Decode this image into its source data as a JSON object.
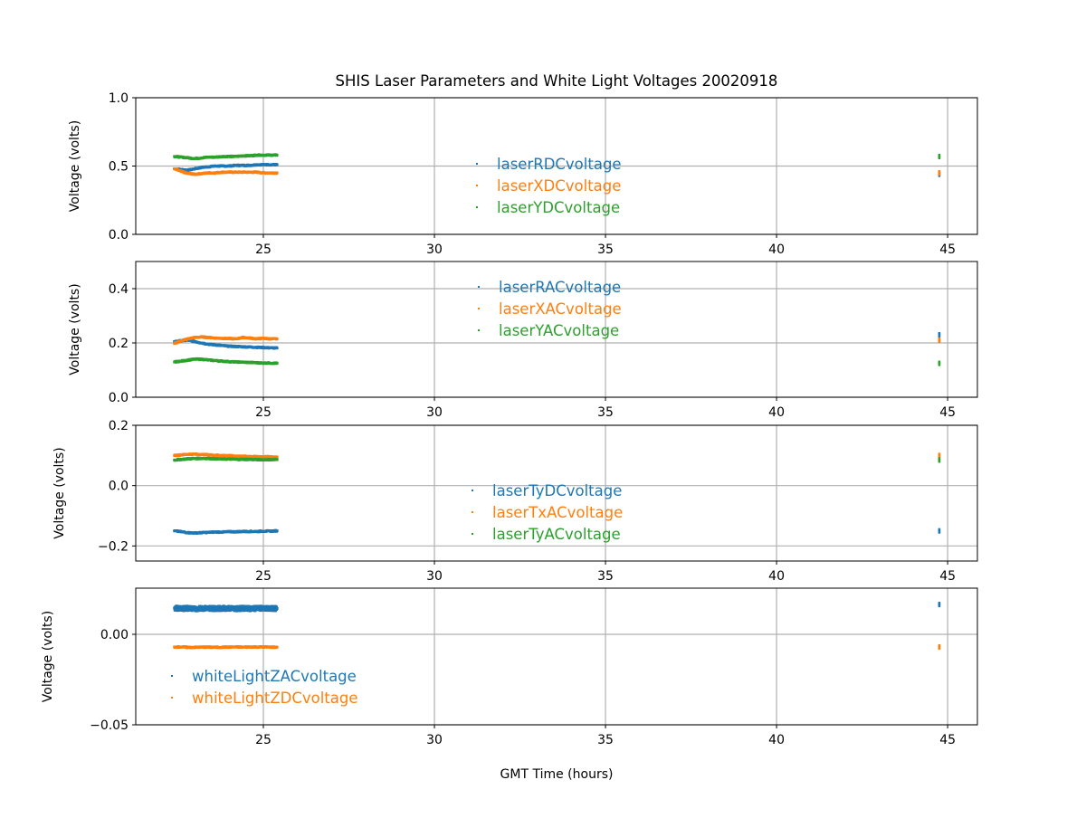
{
  "chart_data": {
    "type": "scatter",
    "title": "SHIS Laser Parameters and White Light Voltages 20020918",
    "xlabel": "GMT Time (hours)",
    "xlim": [
      21.27,
      45.87
    ],
    "xticks": [
      25,
      30,
      35,
      40,
      45
    ],
    "grid": true,
    "x": [
      22.4,
      22.6,
      22.8,
      23.0,
      23.2,
      23.4,
      23.6,
      23.8,
      24.0,
      24.2,
      24.4,
      24.6,
      24.8,
      25.0,
      25.2,
      25.4
    ],
    "x_late": 44.75,
    "panels": [
      {
        "ylabel": "Voltage (volts)",
        "ylim": [
          0,
          1
        ],
        "yticks": [
          0.0,
          0.5,
          1.0
        ],
        "ytick_labels": [
          "0.0",
          "0.5",
          "1.0"
        ],
        "legend_placement": "center",
        "series": [
          {
            "name": "laserRDCvoltage",
            "color": "#1f77b4",
            "values": [
              0.48,
              0.475,
              0.47,
              0.48,
              0.49,
              0.495,
              0.5,
              0.5,
              0.5,
              0.505,
              0.505,
              0.505,
              0.51,
              0.51,
              0.51,
              0.51
            ],
            "late": 0.44
          },
          {
            "name": "laserXDCvoltage",
            "color": "#ff7f0e",
            "values": [
              0.48,
              0.46,
              0.445,
              0.44,
              0.445,
              0.45,
              0.45,
              0.455,
              0.455,
              0.455,
              0.455,
              0.455,
              0.455,
              0.45,
              0.45,
              0.45
            ],
            "late": 0.45
          },
          {
            "name": "laserYDCvoltage",
            "color": "#2ca02c",
            "values": [
              0.57,
              0.565,
              0.56,
              0.555,
              0.56,
              0.565,
              0.565,
              0.57,
              0.57,
              0.57,
              0.575,
              0.575,
              0.58,
              0.58,
              0.58,
              0.58
            ],
            "late": 0.57
          }
        ]
      },
      {
        "ylabel": "Voltage (volts)",
        "ylim": [
          0,
          0.5
        ],
        "yticks": [
          0.0,
          0.2,
          0.4
        ],
        "ytick_labels": [
          "0.0",
          "0.2",
          "0.4"
        ],
        "legend_placement": "upper center",
        "series": [
          {
            "name": "laserRACvoltage",
            "color": "#1f77b4",
            "values": [
              0.205,
              0.208,
              0.21,
              0.205,
              0.2,
              0.195,
              0.193,
              0.19,
              0.188,
              0.187,
              0.186,
              0.185,
              0.184,
              0.183,
              0.182,
              0.181
            ],
            "late": 0.23
          },
          {
            "name": "laserXACvoltage",
            "color": "#ff7f0e",
            "values": [
              0.198,
              0.208,
              0.215,
              0.22,
              0.222,
              0.22,
              0.218,
              0.217,
              0.216,
              0.215,
              0.22,
              0.218,
              0.215,
              0.217,
              0.215,
              0.215
            ],
            "late": 0.21
          },
          {
            "name": "laserYACvoltage",
            "color": "#2ca02c",
            "values": [
              0.13,
              0.133,
              0.137,
              0.14,
              0.14,
              0.137,
              0.135,
              0.133,
              0.131,
              0.13,
              0.129,
              0.128,
              0.127,
              0.126,
              0.126,
              0.125
            ],
            "late": 0.125
          }
        ]
      },
      {
        "ylabel": "Voltage (volts)",
        "ylim": [
          -0.25,
          0.2
        ],
        "yticks": [
          -0.2,
          0.0,
          0.2
        ],
        "ytick_labels": [
          "−0.2",
          "0.0",
          "0.2"
        ],
        "legend_placement": "center",
        "series": [
          {
            "name": "laserTyDCvoltage",
            "color": "#1f77b4",
            "values": [
              -0.15,
              -0.153,
              -0.156,
              -0.157,
              -0.156,
              -0.155,
              -0.154,
              -0.154,
              -0.153,
              -0.153,
              -0.152,
              -0.152,
              -0.152,
              -0.151,
              -0.151,
              -0.15
            ],
            "late": -0.15
          },
          {
            "name": "laserTxACvoltage",
            "color": "#ff7f0e",
            "values": [
              0.1,
              0.102,
              0.104,
              0.104,
              0.103,
              0.102,
              0.101,
              0.1,
              0.099,
              0.098,
              0.097,
              0.097,
              0.096,
              0.096,
              0.095,
              0.095
            ],
            "late": 0.1
          },
          {
            "name": "laserTyACvoltage",
            "color": "#2ca02c",
            "values": [
              0.085,
              0.087,
              0.089,
              0.09,
              0.09,
              0.09,
              0.089,
              0.088,
              0.088,
              0.087,
              0.087,
              0.087,
              0.086,
              0.086,
              0.086,
              0.086
            ],
            "late": 0.085
          }
        ]
      },
      {
        "ylabel": "Voltage (volts)",
        "ylim": [
          -0.05,
          0.0255
        ],
        "yticks": [
          -0.05,
          0.0
        ],
        "ytick_labels": [
          "−0.05",
          "0.00"
        ],
        "legend_placement": "lower left",
        "series": [
          {
            "name": "whiteLightZACvoltage",
            "color": "#1f77b4",
            "values": [
              0.0145,
              0.0142,
              0.0144,
              0.0141,
              0.0143,
              0.0145,
              0.0142,
              0.0144,
              0.0143,
              0.0141,
              0.0144,
              0.0142,
              0.0143,
              0.0144,
              0.0142,
              0.0143
            ],
            "spread": 0.0025,
            "late": 0.0165
          },
          {
            "name": "whiteLightZDCvoltage",
            "color": "#ff7f0e",
            "values": [
              -0.007,
              -0.007,
              -0.0072,
              -0.0072,
              -0.0071,
              -0.0071,
              -0.0072,
              -0.0071,
              -0.0071,
              -0.007,
              -0.0071,
              -0.007,
              -0.007,
              -0.007,
              -0.0071,
              -0.0071
            ],
            "late": -0.007
          }
        ]
      }
    ]
  }
}
